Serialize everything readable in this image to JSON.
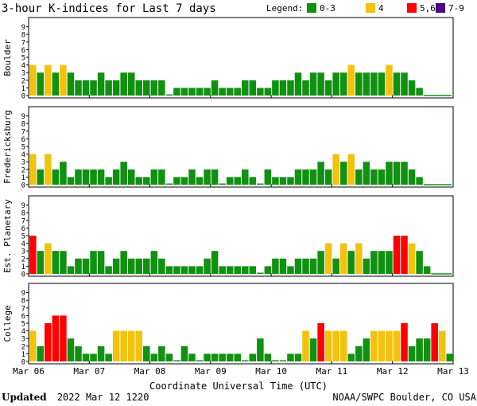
{
  "title": "3-hour K-indices for Last 7 days",
  "legend": {
    "label": "Legend:",
    "entries": [
      {
        "label": "0-3",
        "color": "#119111"
      },
      {
        "label": "4",
        "color": "#f2c20c"
      },
      {
        "label": "5,6",
        "color": "#ff0000"
      },
      {
        "label": "7-9",
        "color": "#4b0082"
      }
    ]
  },
  "xlabel": "Coordinate Universal Time (UTC)",
  "date_labels": [
    "Mar 06",
    "Mar 07",
    "Mar 08",
    "Mar 09",
    "Mar 10",
    "Mar 11",
    "Mar 12",
    "Mar 13"
  ],
  "y_ticks": [
    "0",
    "1",
    "2",
    "3",
    "4",
    "5",
    "6",
    "7",
    "8",
    "9"
  ],
  "footer": {
    "updated_label": "Updated",
    "updated_value": "2022 Mar 12 1220",
    "credit": "NOAA/SWPC Boulder, CO USA"
  },
  "chart_data": {
    "type": "bar",
    "x_unit": "3-hour interval",
    "x_start": "Mar 06 00:00 UTC",
    "x_end": "Mar 13 00:00 UTC",
    "ylim": [
      0,
      9
    ],
    "color_scale": [
      {
        "range": "0-3",
        "color": "#119111"
      },
      {
        "range": "4",
        "color": "#f2c20c"
      },
      {
        "range": "5,6",
        "color": "#ff0000"
      },
      {
        "range": "7-9",
        "color": "#4b0082"
      }
    ],
    "series": [
      {
        "name": "Boulder",
        "values": [
          4,
          3,
          4,
          3,
          4,
          3,
          2,
          2,
          2,
          3,
          2,
          2,
          3,
          3,
          2,
          2,
          2,
          2,
          0,
          1,
          1,
          1,
          1,
          1,
          2,
          1,
          1,
          1,
          2,
          2,
          1,
          1,
          2,
          2,
          2,
          3,
          2,
          3,
          3,
          2,
          3,
          3,
          4,
          3,
          3,
          3,
          3,
          4,
          3,
          3,
          2,
          1
        ]
      },
      {
        "name": "Fredericksburg",
        "values": [
          4,
          2,
          4,
          2,
          3,
          1,
          2,
          2,
          2,
          2,
          1,
          2,
          3,
          2,
          1,
          1,
          2,
          2,
          0,
          1,
          1,
          2,
          1,
          2,
          2,
          0,
          1,
          1,
          2,
          1,
          0,
          2,
          1,
          1,
          1,
          2,
          2,
          2,
          3,
          2,
          4,
          3,
          4,
          2,
          3,
          2,
          2,
          3,
          3,
          3,
          2,
          1
        ]
      },
      {
        "name": "Est. Planetary",
        "values": [
          5,
          3,
          4,
          3,
          3,
          1,
          2,
          2,
          3,
          3,
          1,
          2,
          3,
          2,
          2,
          2,
          3,
          2,
          1,
          1,
          1,
          1,
          1,
          2,
          3,
          1,
          1,
          1,
          1,
          1,
          0,
          1,
          2,
          2,
          1,
          2,
          2,
          2,
          3,
          4,
          2,
          4,
          3,
          4,
          2,
          3,
          3,
          3,
          5,
          5,
          4,
          3,
          1
        ]
      },
      {
        "name": "College",
        "values": [
          4,
          2,
          5,
          6,
          6,
          3,
          2,
          1,
          1,
          2,
          1,
          4,
          4,
          4,
          4,
          2,
          1,
          2,
          1,
          0,
          2,
          1,
          0,
          1,
          1,
          1,
          1,
          1,
          0,
          1,
          3,
          1,
          0,
          0,
          1,
          1,
          4,
          3,
          5,
          4,
          4,
          4,
          1,
          2,
          3,
          4,
          4,
          4,
          4,
          5,
          2,
          3,
          3,
          5,
          4,
          1
        ]
      }
    ]
  }
}
